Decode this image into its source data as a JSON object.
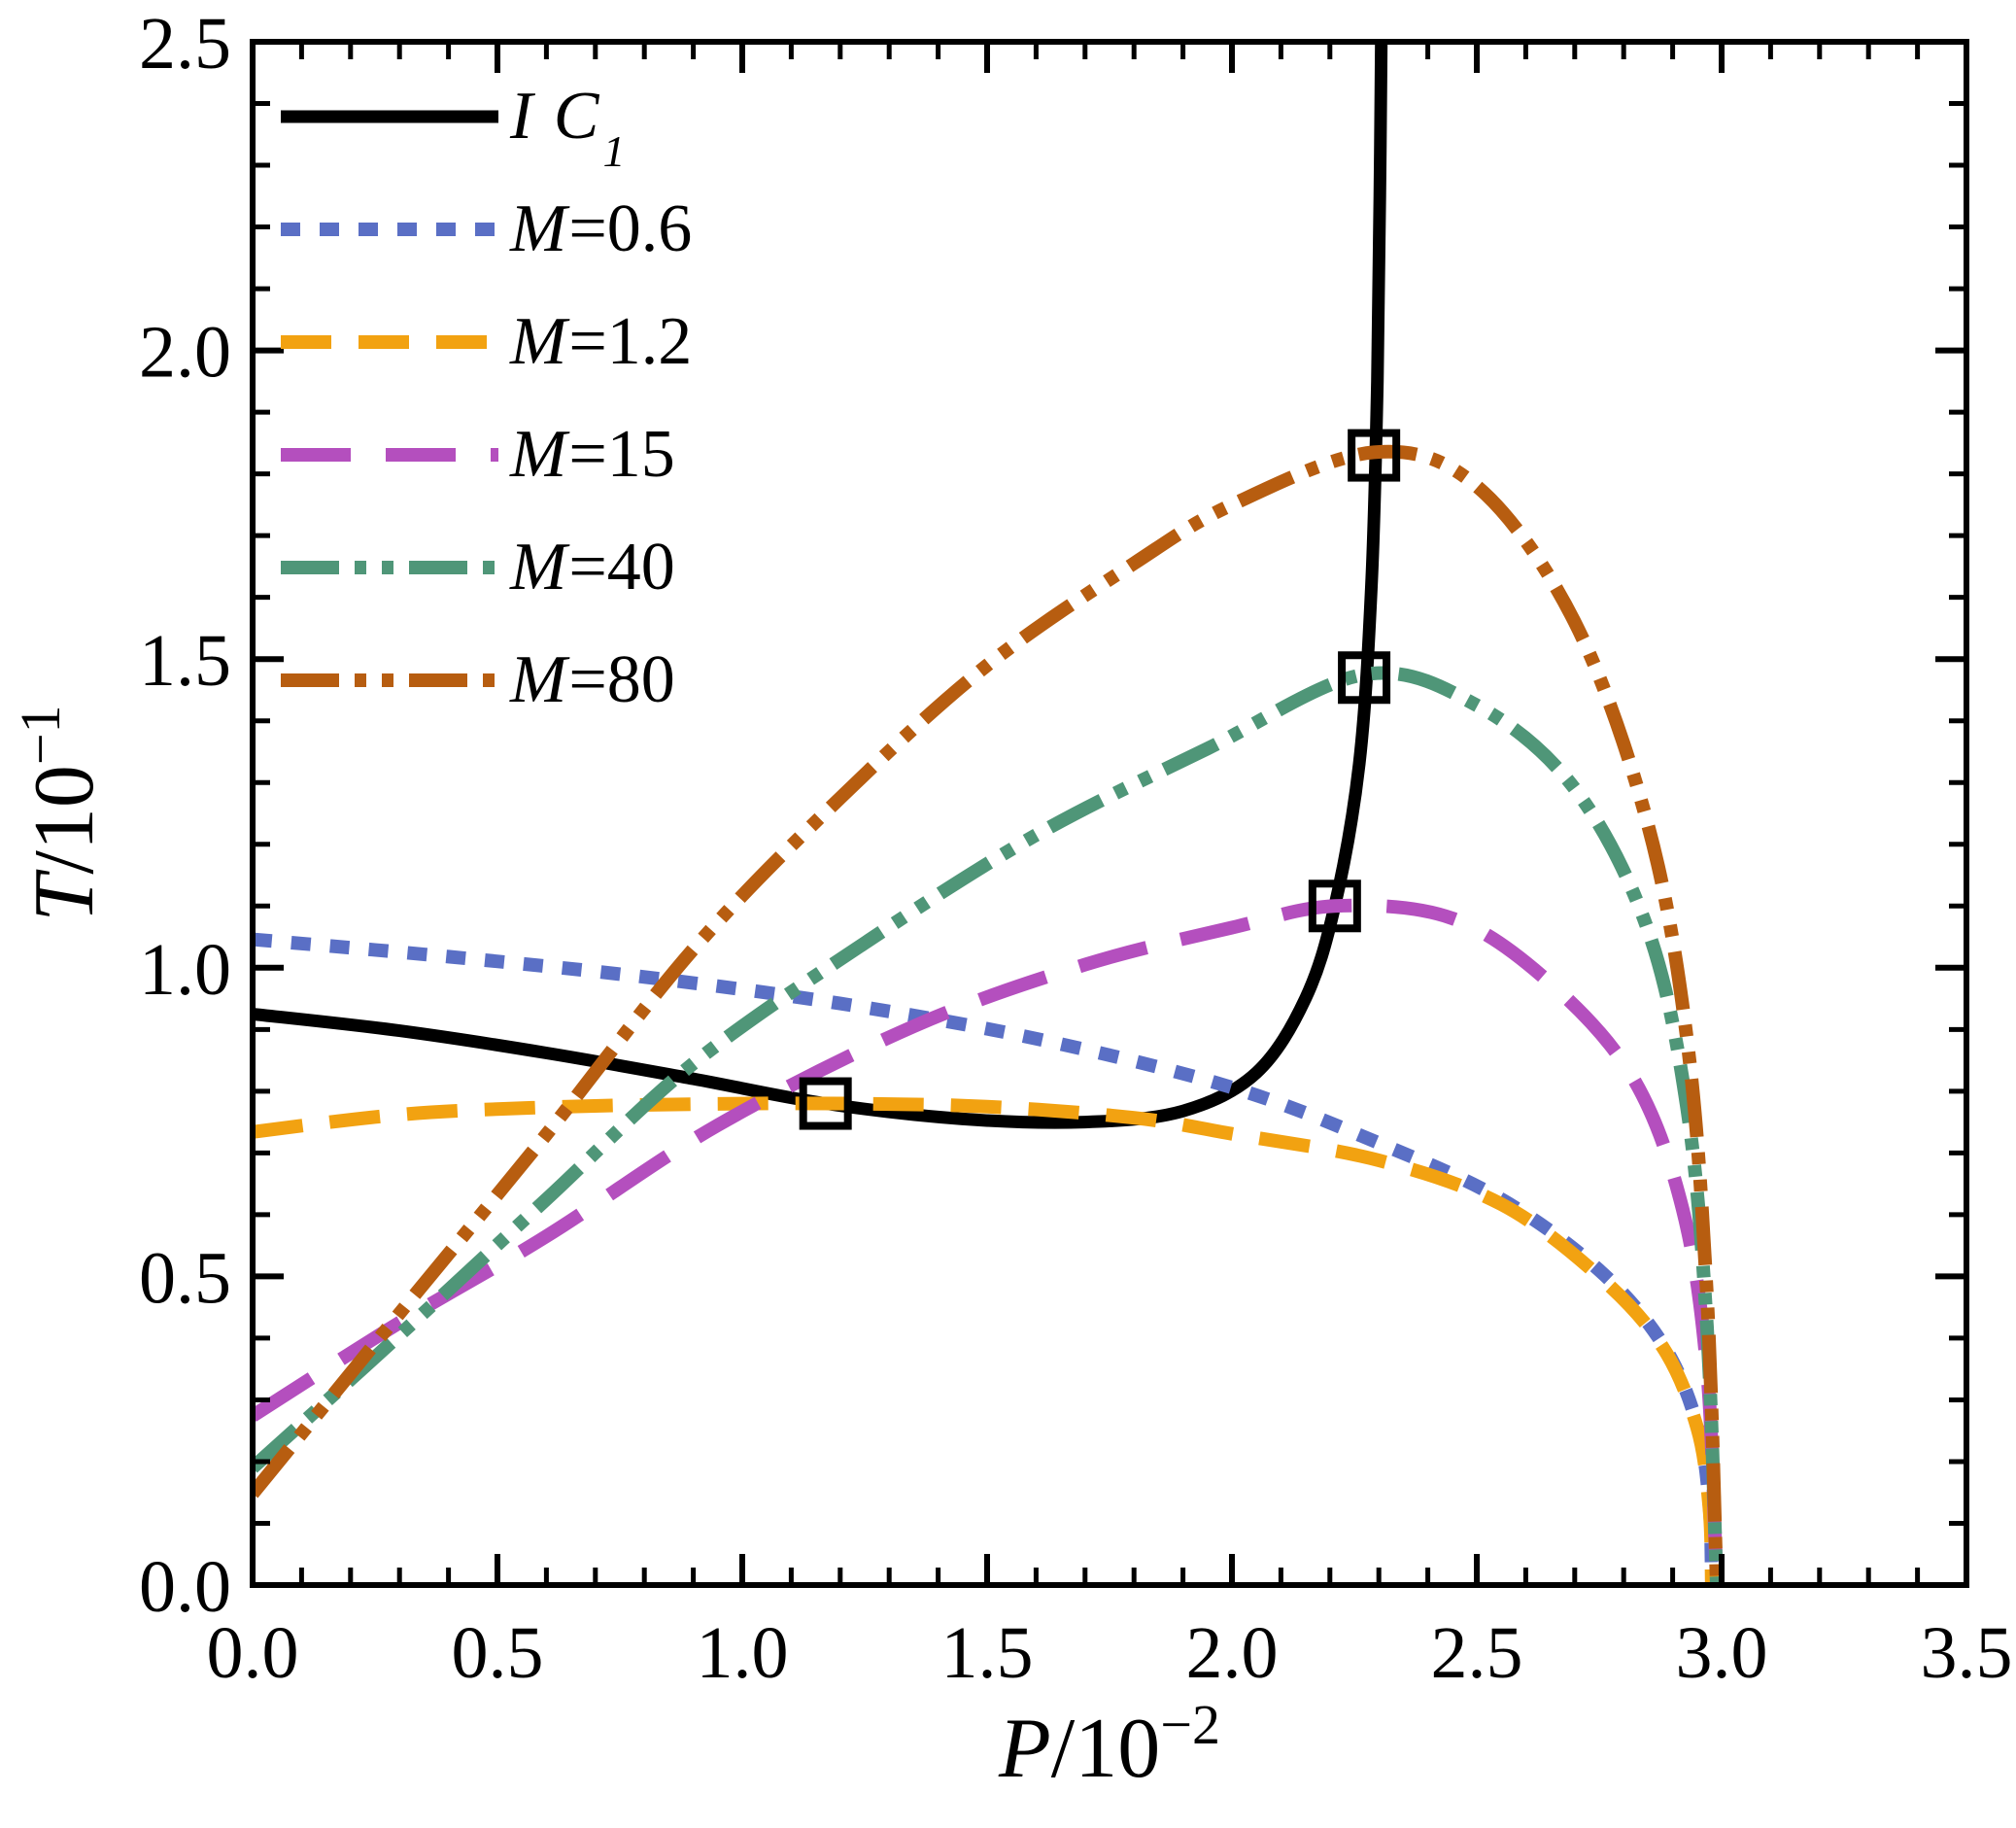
{
  "figure": {
    "background": "#ffffff",
    "frame_color": "#000000"
  },
  "chart_data": {
    "type": "line",
    "title": "",
    "xlabel": {
      "it": "P",
      "rm": "/10",
      "exp": "−2"
    },
    "ylabel": {
      "it": "T",
      "rm": "/10",
      "exp": "−1"
    },
    "xlim": [
      0,
      3.5
    ],
    "ylim": [
      0,
      2.5
    ],
    "grid": "off",
    "legend_position": "top-left-inside",
    "x_ticks": {
      "values": [
        0,
        0.5,
        1,
        1.5,
        2,
        2.5,
        3,
        3.5
      ],
      "labels": [
        "0.0",
        "0.5",
        "1.0",
        "1.5",
        "2.0",
        "2.5",
        "3.0",
        "3.5"
      ],
      "minor_step": 0.1
    },
    "y_ticks": {
      "values": [
        0,
        0.5,
        1,
        1.5,
        2,
        2.5
      ],
      "labels": [
        "0.0",
        "0.5",
        "1.0",
        "1.5",
        "2.0",
        "2.5"
      ],
      "minor_step": 0.1
    },
    "series": [
      {
        "name": "IC1",
        "label_it": "I C",
        "label_rm": "",
        "label_sub": "1",
        "color": "#000000",
        "dash": "",
        "width": 13,
        "points": [
          [
            0,
            0.925
          ],
          [
            0.3,
            0.898
          ],
          [
            0.6,
            0.862
          ],
          [
            0.9,
            0.82
          ],
          [
            1.17,
            0.78
          ],
          [
            1.45,
            0.755
          ],
          [
            1.7,
            0.75
          ],
          [
            1.9,
            0.768
          ],
          [
            2.05,
            0.83
          ],
          [
            2.15,
            0.95
          ],
          [
            2.21,
            1.1
          ],
          [
            2.26,
            1.33
          ],
          [
            2.285,
            1.62
          ],
          [
            2.297,
            1.95
          ],
          [
            2.302,
            2.25
          ],
          [
            2.305,
            2.5
          ]
        ]
      },
      {
        "name": "M=0.6",
        "label_it": "M",
        "label_rm": "=0.6",
        "label_sub": "",
        "color": "#5A6FC5",
        "dash": "20 20",
        "width": 14,
        "points": [
          [
            0,
            1.046
          ],
          [
            0.4,
            1.018
          ],
          [
            0.8,
            0.985
          ],
          [
            1.2,
            0.942
          ],
          [
            1.6,
            0.885
          ],
          [
            2.0,
            0.806
          ],
          [
            2.3,
            0.716
          ],
          [
            2.55,
            0.625
          ],
          [
            2.75,
            0.51
          ],
          [
            2.88,
            0.39
          ],
          [
            2.95,
            0.26
          ],
          [
            2.975,
            0.13
          ],
          [
            2.98,
            0
          ]
        ]
      },
      {
        "name": "M=1.2",
        "label_it": "M",
        "label_rm": "=1.2",
        "label_sub": "",
        "color": "#F2A211",
        "dash": "52 28",
        "width": 14,
        "points": [
          [
            0,
            0.734
          ],
          [
            0.3,
            0.762
          ],
          [
            0.6,
            0.774
          ],
          [
            0.9,
            0.779
          ],
          [
            1.2,
            0.78
          ],
          [
            1.5,
            0.775
          ],
          [
            1.8,
            0.757
          ],
          [
            2.0,
            0.731
          ],
          [
            2.3,
            0.688
          ],
          [
            2.55,
            0.617
          ],
          [
            2.75,
            0.5
          ],
          [
            2.88,
            0.385
          ],
          [
            2.95,
            0.255
          ],
          [
            2.975,
            0.125
          ],
          [
            2.98,
            0
          ]
        ]
      },
      {
        "name": "M=15",
        "label_it": "M",
        "label_rm": "=15",
        "label_sub": "",
        "color": "#B44FBE",
        "dash": "72 36",
        "width": 14,
        "points": [
          [
            0,
            0.274
          ],
          [
            0.3,
            0.425
          ],
          [
            0.6,
            0.565
          ],
          [
            0.95,
            0.745
          ],
          [
            1.35,
            0.905
          ],
          [
            1.7,
            1.005
          ],
          [
            2.0,
            1.065
          ],
          [
            2.21,
            1.1
          ],
          [
            2.45,
            1.08
          ],
          [
            2.65,
            0.975
          ],
          [
            2.82,
            0.82
          ],
          [
            2.92,
            0.61
          ],
          [
            2.97,
            0.35
          ],
          [
            2.99,
            0
          ]
        ]
      },
      {
        "name": "M=40",
        "label_it": "M",
        "label_rm": "=40",
        "label_sub": "",
        "color": "#4F9678",
        "dash": "60 16 12 16 12 16",
        "width": 14,
        "points": [
          [
            0,
            0.19
          ],
          [
            0.3,
            0.405
          ],
          [
            0.6,
            0.625
          ],
          [
            0.9,
            0.845
          ],
          [
            1.25,
            1.04
          ],
          [
            1.6,
            1.215
          ],
          [
            1.95,
            1.355
          ],
          [
            2.27,
            1.475
          ],
          [
            2.5,
            1.425
          ],
          [
            2.7,
            1.29
          ],
          [
            2.85,
            1.06
          ],
          [
            2.93,
            0.77
          ],
          [
            2.97,
            0.42
          ],
          [
            2.99,
            0
          ]
        ]
      },
      {
        "name": "M=80",
        "label_it": "M",
        "label_rm": "=80",
        "label_sub": "",
        "color": "#B75D10",
        "dash": "60 16 12 16 12 16",
        "width": 14,
        "points": [
          [
            0,
            0.148
          ],
          [
            0.3,
            0.44
          ],
          [
            0.6,
            0.73
          ],
          [
            0.9,
            1.03
          ],
          [
            1.2,
            1.275
          ],
          [
            1.5,
            1.49
          ],
          [
            1.8,
            1.655
          ],
          [
            2.0,
            1.75
          ],
          [
            2.29,
            1.835
          ],
          [
            2.5,
            1.78
          ],
          [
            2.7,
            1.56
          ],
          [
            2.85,
            1.23
          ],
          [
            2.93,
            0.88
          ],
          [
            2.97,
            0.47
          ],
          [
            2.99,
            0
          ]
        ]
      }
    ],
    "markers": {
      "shape": "open-square",
      "color": "#000000",
      "size": 46,
      "stroke_width": 8,
      "points": [
        [
          1.17,
          0.78
        ],
        [
          2.21,
          1.1
        ],
        [
          2.27,
          1.47
        ],
        [
          2.29,
          1.83
        ]
      ]
    }
  }
}
